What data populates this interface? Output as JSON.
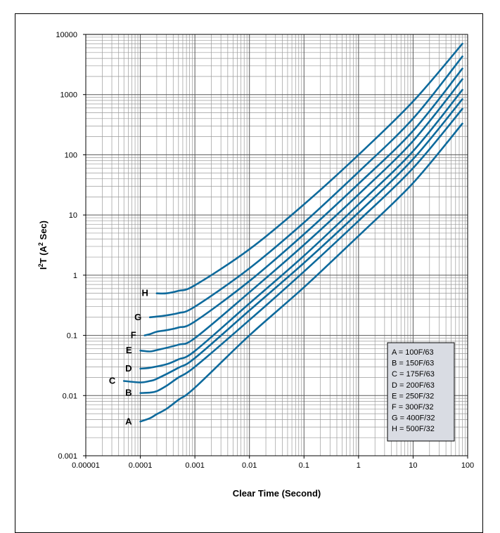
{
  "chart_data": {
    "type": "line",
    "xscale": "log",
    "yscale": "log",
    "xlim": [
      1e-05,
      100
    ],
    "ylim": [
      0.001,
      10000
    ],
    "grid": true,
    "xlabel": "Clear Time (Second)",
    "ylabel_main": "I",
    "ylabel_sup": "2",
    "ylabel_mid": "T (A",
    "ylabel_sup2": "2",
    "ylabel_end": " Sec)",
    "x_ticks": [
      "0.00001",
      "0.0001",
      "0.001",
      "0.01",
      "0.1",
      "1",
      "10",
      "100"
    ],
    "y_ticks": [
      "0.001",
      "0.01",
      "0.1",
      "1",
      "10",
      "100",
      "1000",
      "10000"
    ],
    "legend_position": "lower-right",
    "legend": [
      "A = 100F/63",
      "B = 150F/63",
      "C = 175F/63",
      "D = 200F/63",
      "E = 250F/32",
      "F = 300F/32",
      "G = 400F/32",
      "H = 500F/32"
    ],
    "line_color": "#0E6A9C",
    "series": [
      {
        "name": "A",
        "points": [
          [
            0.0001,
            0.0037
          ],
          [
            0.00015,
            0.0042
          ],
          [
            0.0002,
            0.0049
          ],
          [
            0.0003,
            0.006
          ],
          [
            0.0005,
            0.0085
          ],
          [
            0.001,
            0.0135
          ],
          [
            0.01,
            0.1
          ],
          [
            0.1,
            0.63
          ],
          [
            1,
            4.5
          ],
          [
            10,
            34
          ],
          [
            80,
            330
          ]
        ]
      },
      {
        "name": "B",
        "points": [
          [
            0.0001,
            0.011
          ],
          [
            0.00015,
            0.0112
          ],
          [
            0.0002,
            0.0118
          ],
          [
            0.0003,
            0.0145
          ],
          [
            0.0005,
            0.02
          ],
          [
            0.001,
            0.03
          ],
          [
            0.01,
            0.18
          ],
          [
            0.1,
            1.15
          ],
          [
            1,
            8
          ],
          [
            10,
            60
          ],
          [
            80,
            580
          ]
        ]
      },
      {
        "name": "C",
        "points": [
          [
            5e-05,
            0.0175
          ],
          [
            0.0001,
            0.0165
          ],
          [
            0.00015,
            0.0175
          ],
          [
            0.0002,
            0.019
          ],
          [
            0.0005,
            0.029
          ],
          [
            0.001,
            0.042
          ],
          [
            0.01,
            0.26
          ],
          [
            0.1,
            1.6
          ],
          [
            1,
            11
          ],
          [
            10,
            85
          ],
          [
            80,
            840
          ]
        ]
      },
      {
        "name": "D",
        "points": [
          [
            0.0001,
            0.028
          ],
          [
            0.00015,
            0.029
          ],
          [
            0.0003,
            0.033
          ],
          [
            0.0005,
            0.04
          ],
          [
            0.001,
            0.055
          ],
          [
            0.01,
            0.34
          ],
          [
            0.1,
            2.1
          ],
          [
            1,
            15
          ],
          [
            10,
            115
          ],
          [
            80,
            1200
          ]
        ]
      },
      {
        "name": "E",
        "points": [
          [
            0.0001,
            0.056
          ],
          [
            0.00015,
            0.054
          ],
          [
            0.0002,
            0.057
          ],
          [
            0.0005,
            0.07
          ],
          [
            0.001,
            0.09
          ],
          [
            0.01,
            0.52
          ],
          [
            0.1,
            3.2
          ],
          [
            1,
            22
          ],
          [
            10,
            170
          ],
          [
            80,
            1800
          ]
        ]
      },
      {
        "name": "F",
        "points": [
          [
            0.00012,
            0.1
          ],
          [
            0.00015,
            0.105
          ],
          [
            0.0002,
            0.115
          ],
          [
            0.0003,
            0.122
          ],
          [
            0.0005,
            0.135
          ],
          [
            0.001,
            0.17
          ],
          [
            0.01,
            0.8
          ],
          [
            0.1,
            4.8
          ],
          [
            1,
            33
          ],
          [
            10,
            250
          ],
          [
            80,
            2700
          ]
        ]
      },
      {
        "name": "G",
        "points": [
          [
            0.00015,
            0.2
          ],
          [
            0.0002,
            0.205
          ],
          [
            0.0003,
            0.215
          ],
          [
            0.0005,
            0.235
          ],
          [
            0.001,
            0.3
          ],
          [
            0.01,
            1.3
          ],
          [
            0.1,
            7.5
          ],
          [
            1,
            52
          ],
          [
            10,
            400
          ],
          [
            80,
            4300
          ]
        ]
      },
      {
        "name": "H",
        "points": [
          [
            0.0002,
            0.5
          ],
          [
            0.0003,
            0.5
          ],
          [
            0.0005,
            0.55
          ],
          [
            0.001,
            0.68
          ],
          [
            0.01,
            2.7
          ],
          [
            0.1,
            15
          ],
          [
            1,
            100
          ],
          [
            10,
            770
          ],
          [
            80,
            7000
          ]
        ]
      }
    ],
    "curve_labels": [
      "H",
      "G",
      "F",
      "E",
      "D",
      "C",
      "B",
      "A"
    ]
  }
}
